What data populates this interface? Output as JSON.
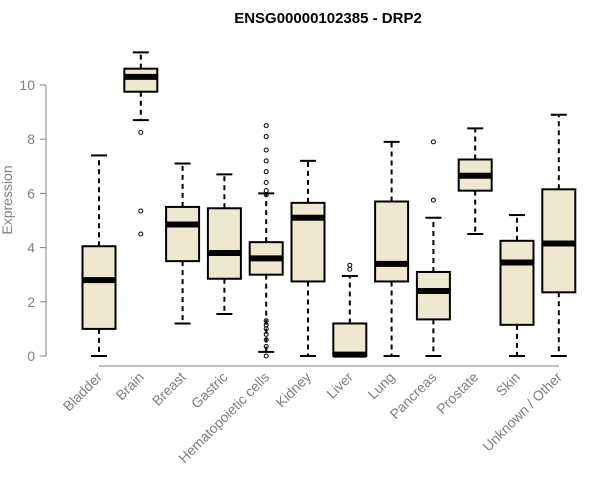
{
  "chart_data": {
    "type": "box",
    "title": "ENSG00000102385 - DRP2",
    "xlabel": "",
    "ylabel": "Expression",
    "ylim": [
      0,
      11.4
    ],
    "yticks": [
      0,
      2,
      4,
      6,
      8,
      10
    ],
    "categories": [
      "Bladder",
      "Brain",
      "Breast",
      "Gastric",
      "Hematopoietic cells",
      "Kidney",
      "Liver",
      "Lung",
      "Pancreas",
      "Prostate",
      "Skin",
      "Unknown / Other"
    ],
    "boxes": [
      {
        "category": "Bladder",
        "whisker_low": 0.0,
        "q1": 1.0,
        "median": 2.8,
        "q3": 4.05,
        "whisker_high": 7.4,
        "outliers": []
      },
      {
        "category": "Brain",
        "whisker_low": 8.7,
        "q1": 9.75,
        "median": 10.3,
        "q3": 10.6,
        "whisker_high": 11.2,
        "outliers": [
          8.25,
          5.35,
          4.5
        ]
      },
      {
        "category": "Breast",
        "whisker_low": 1.2,
        "q1": 3.5,
        "median": 4.85,
        "q3": 5.5,
        "whisker_high": 7.1,
        "outliers": []
      },
      {
        "category": "Gastric",
        "whisker_low": 1.55,
        "q1": 2.85,
        "median": 3.8,
        "q3": 5.45,
        "whisker_high": 6.7,
        "outliers": []
      },
      {
        "category": "Hematopoietic cells",
        "whisker_low": 0.15,
        "q1": 3.0,
        "median": 3.6,
        "q3": 4.2,
        "whisker_high": 6.0,
        "outliers": [
          8.5,
          8.1,
          7.6,
          7.2,
          6.8,
          6.4,
          6.1,
          5.95,
          1.3,
          1.15,
          1.0,
          0.8,
          0.6,
          0.35,
          0.0
        ]
      },
      {
        "category": "Kidney",
        "whisker_low": 0.0,
        "q1": 2.75,
        "median": 5.1,
        "q3": 5.65,
        "whisker_high": 7.2,
        "outliers": []
      },
      {
        "category": "Liver",
        "whisker_low": 0.0,
        "q1": 0.0,
        "median": 0.05,
        "q3": 1.2,
        "whisker_high": 2.95,
        "outliers": [
          3.35,
          3.2
        ]
      },
      {
        "category": "Lung",
        "whisker_low": 0.0,
        "q1": 2.75,
        "median": 3.4,
        "q3": 5.7,
        "whisker_high": 7.9,
        "outliers": []
      },
      {
        "category": "Pancreas",
        "whisker_low": 0.0,
        "q1": 1.35,
        "median": 2.4,
        "q3": 3.1,
        "whisker_high": 5.1,
        "outliers": [
          7.9,
          5.75
        ]
      },
      {
        "category": "Prostate",
        "whisker_low": 4.5,
        "q1": 6.1,
        "median": 6.65,
        "q3": 7.25,
        "whisker_high": 8.4,
        "outliers": []
      },
      {
        "category": "Skin",
        "whisker_low": 0.0,
        "q1": 1.15,
        "median": 3.45,
        "q3": 4.25,
        "whisker_high": 5.2,
        "outliers": []
      },
      {
        "category": "Unknown / Other",
        "whisker_low": 0.0,
        "q1": 2.35,
        "median": 4.15,
        "q3": 6.15,
        "whisker_high": 8.9,
        "outliers": []
      }
    ]
  }
}
